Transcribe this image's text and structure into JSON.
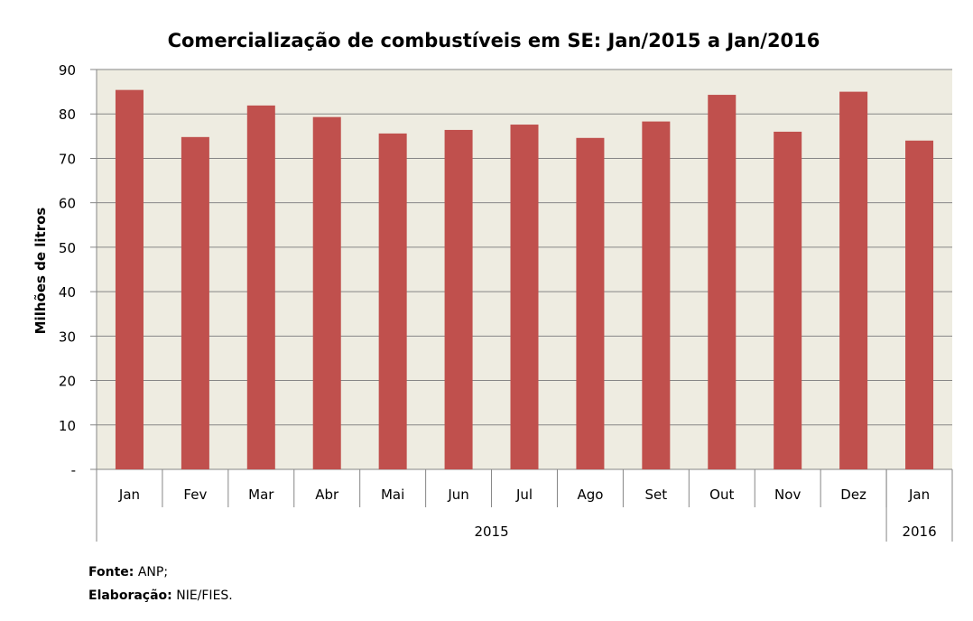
{
  "chart_data": {
    "type": "bar",
    "title": "Comercialização de combustíveis em SE: Jan/2015 a Jan/2016",
    "ylabel": "Milhões de litros",
    "xlabel": "",
    "ylim": [
      0,
      90
    ],
    "yticks": [
      "-",
      "10",
      "20",
      "30",
      "40",
      "50",
      "60",
      "70",
      "80",
      "90"
    ],
    "categories": [
      "Jan",
      "Fev",
      "Mar",
      "Abr",
      "Mai",
      "Jun",
      "Jul",
      "Ago",
      "Set",
      "Out",
      "Nov",
      "Dez",
      "Jan"
    ],
    "groups": [
      {
        "label": "2015",
        "count": 12
      },
      {
        "label": "2016",
        "count": 1
      }
    ],
    "values": [
      85.4,
      74.8,
      81.9,
      79.3,
      75.6,
      76.4,
      77.6,
      74.6,
      78.3,
      84.3,
      76.0,
      85.0,
      74.0
    ],
    "colors": {
      "bar": "#C0504D",
      "plot_bg": "#EEECE1",
      "grid": "#868686"
    },
    "grid": true,
    "legend": "none"
  },
  "source": {
    "fonte_label": "Fonte:",
    "fonte_value": "ANP;",
    "elab_label": "Elaboração:",
    "elab_value": "NIE/FIES."
  }
}
